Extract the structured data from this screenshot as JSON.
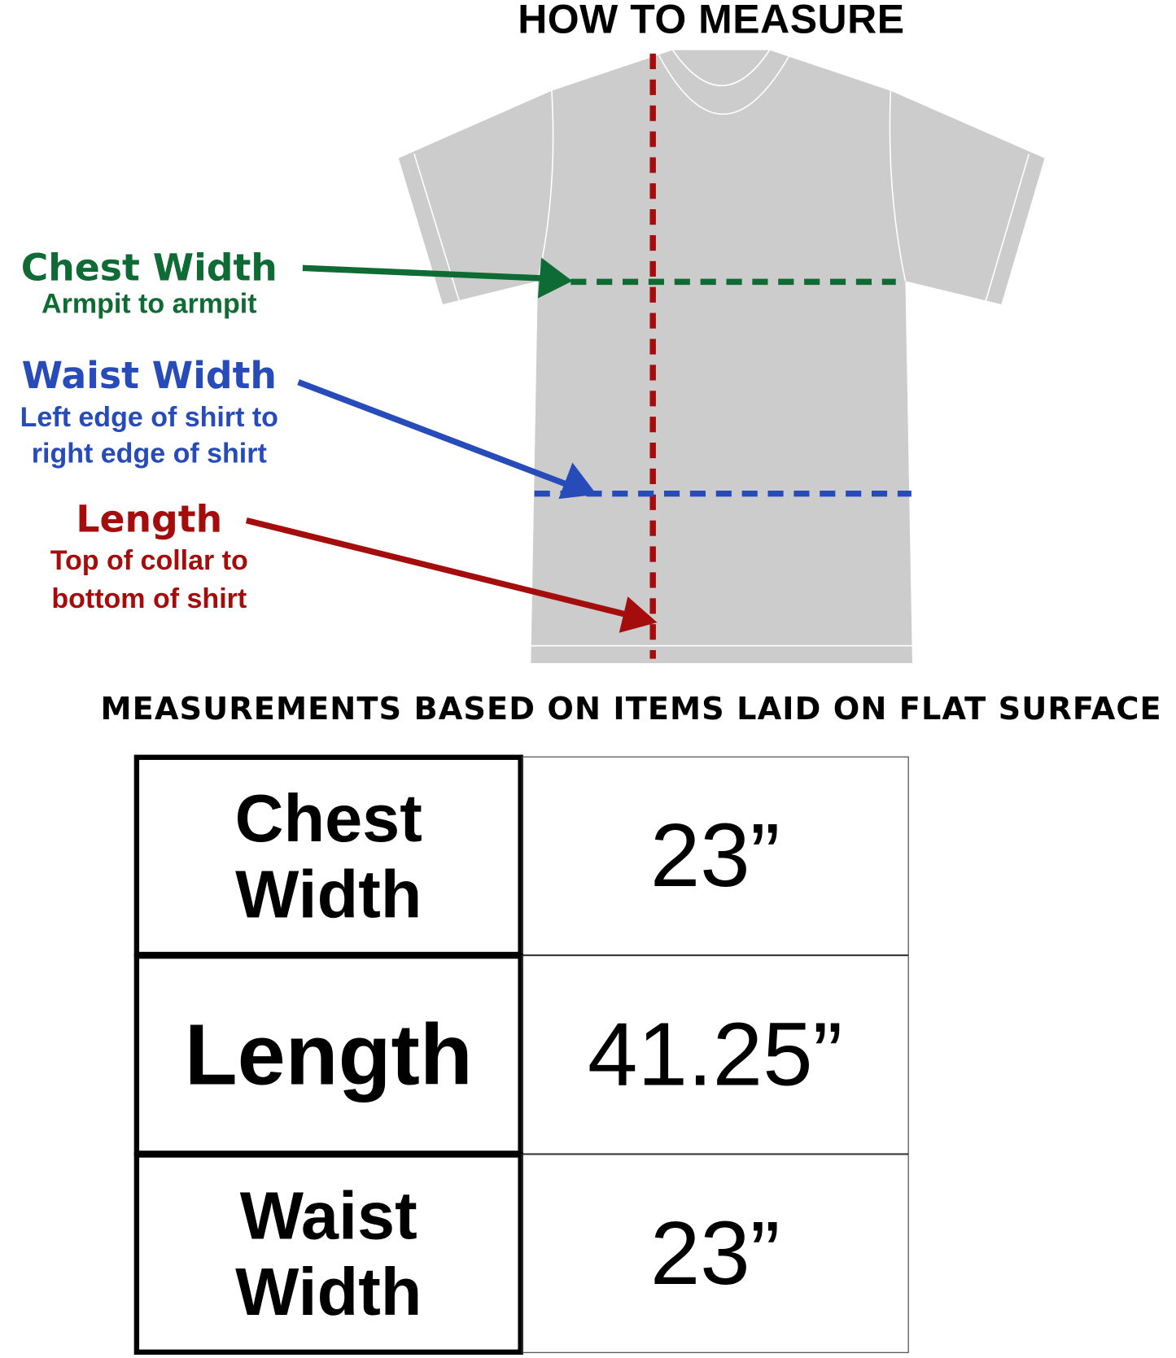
{
  "title": "HOW TO MEASURE",
  "labels": {
    "chest": {
      "heading": "Chest Width",
      "desc": "Armpit to armpit",
      "color": "#0d6b33"
    },
    "waist": {
      "heading": "Waist Width",
      "desc_line1": "Left edge of shirt to",
      "desc_line2": "right edge of shirt",
      "color": "#274bb8"
    },
    "length": {
      "heading": "Length",
      "desc_line1": "Top of collar to",
      "desc_line2": "bottom of shirt",
      "color": "#a50d0d"
    }
  },
  "shirt_color": "#cbcccb",
  "subtitle": "MEASUREMENTS BASED ON ITEMS LAID ON FLAT SURFACE",
  "table": {
    "rows": [
      {
        "label_line1": "Chest",
        "label_line2": "Width",
        "value": "23”"
      },
      {
        "label_line1": "Length",
        "label_line2": "",
        "value": "41.25”"
      },
      {
        "label_line1": "Waist",
        "label_line2": "Width",
        "value": "23”"
      }
    ]
  }
}
